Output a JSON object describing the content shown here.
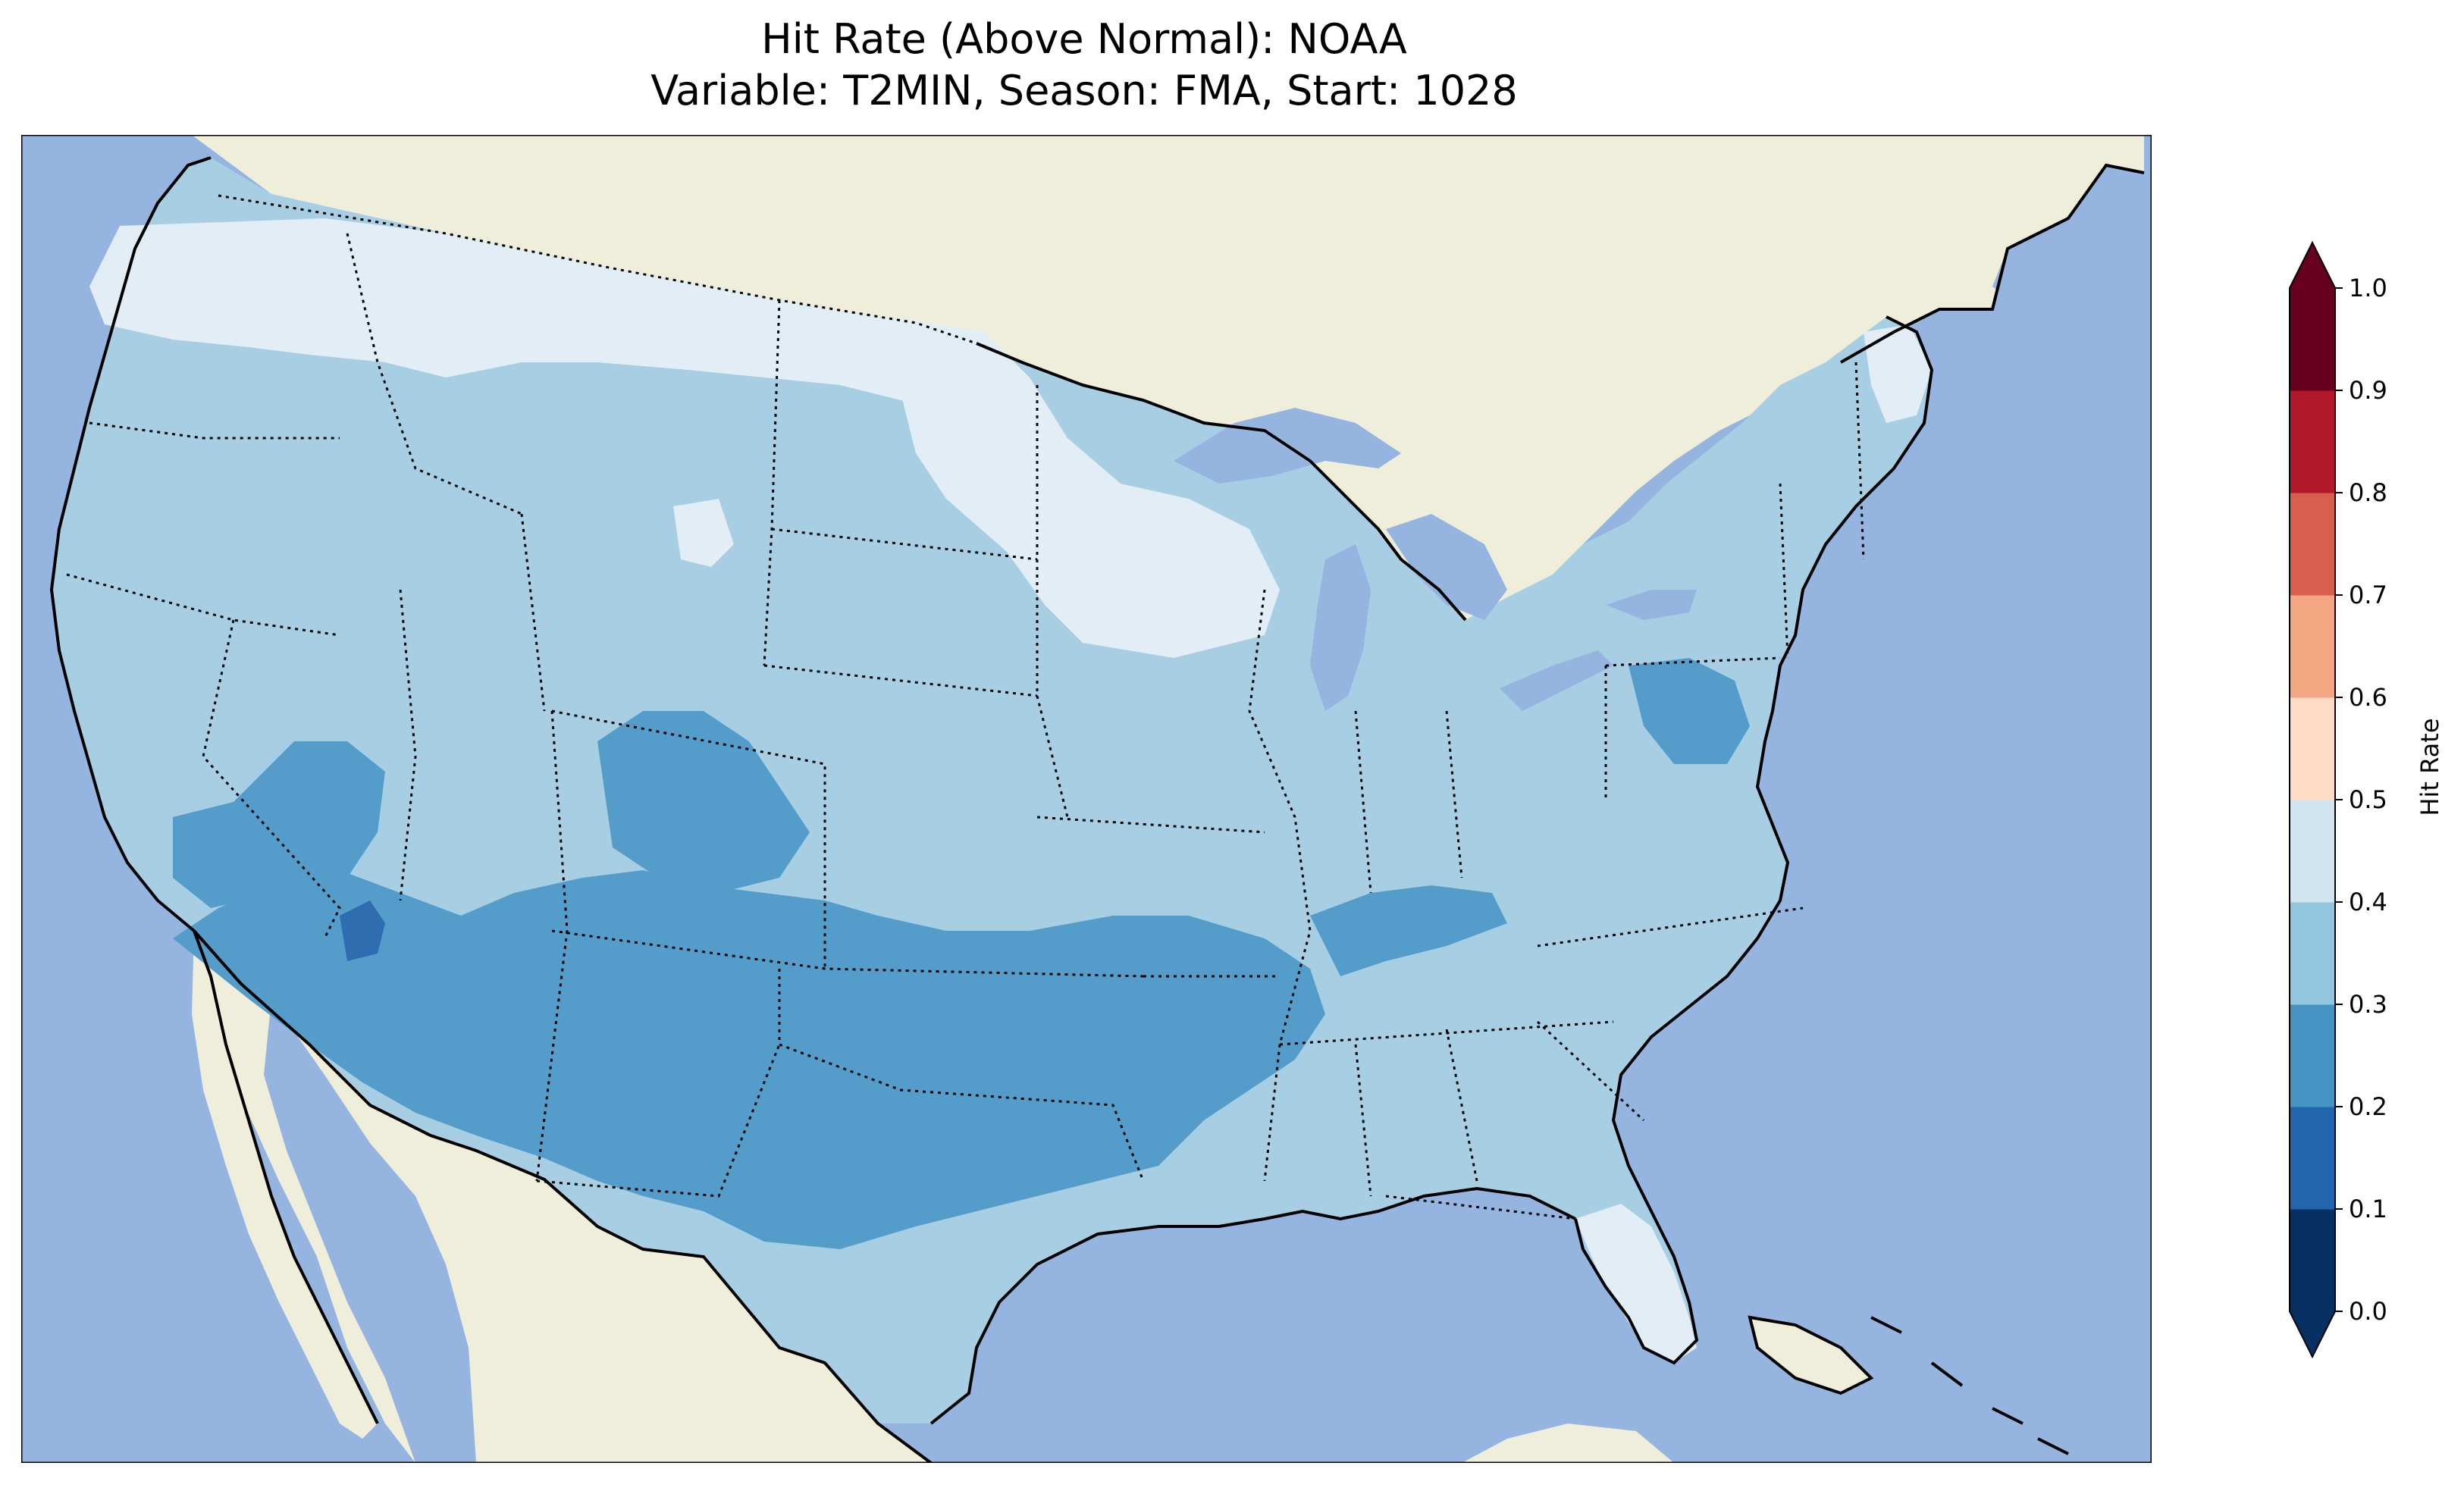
{
  "title": {
    "line1": "Hit Rate (Above Normal): NOAA",
    "line2": "Variable: T2MIN, Season: FMA, Start: 1028"
  },
  "colors": {
    "ocean": "#95b4e0",
    "land": "#efeedb",
    "levels": [
      "#053061",
      "#2166ac",
      "#4393c3",
      "#92c5de",
      "#d1e5f0",
      "#fddbc7",
      "#f4a582",
      "#d6604d",
      "#b2182b",
      "#67001f"
    ],
    "bin_colors": {
      "0.1-0.2": "#2f6cb0",
      "0.2-0.3": "#549dca",
      "0.3-0.4": "#a8cee4",
      "0.4-0.5": "#e2edf6"
    }
  },
  "chart_data": {
    "type": "heatmap",
    "colorbar": {
      "label": "Hit Rate",
      "ticks": [
        "0.0",
        "0.1",
        "0.2",
        "0.3",
        "0.4",
        "0.5",
        "0.6",
        "0.7",
        "0.8",
        "0.9",
        "1.0"
      ],
      "range": [
        0.0,
        1.0
      ],
      "extend": "both"
    }
  }
}
